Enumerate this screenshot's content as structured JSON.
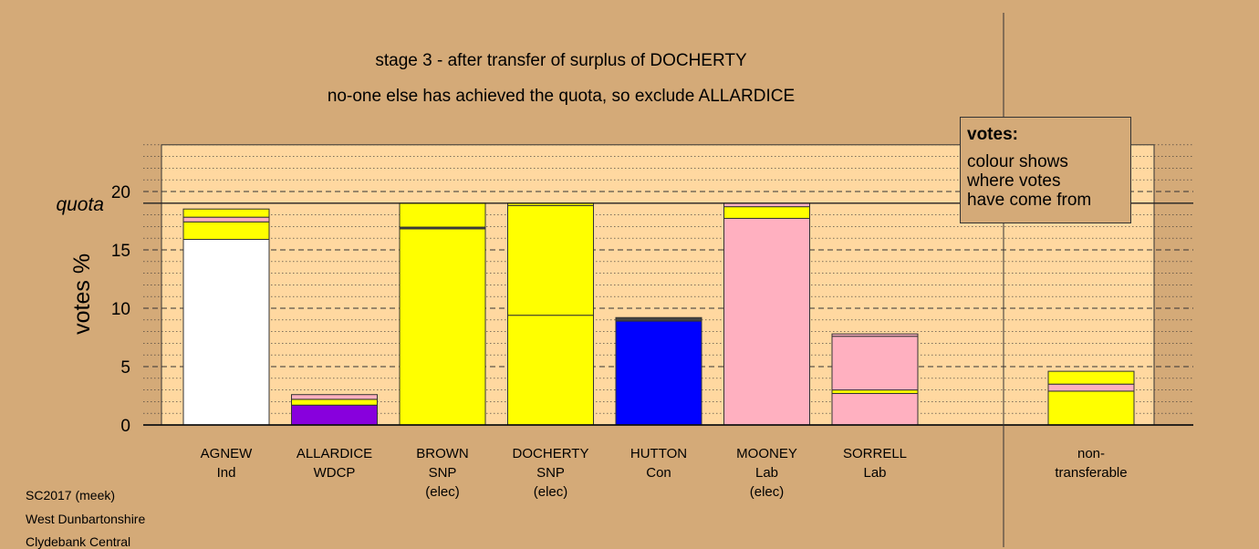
{
  "title": "stage 3 - after transfer of surplus of DOCHERTY",
  "subtitle": "no-one else has achieved the quota, so exclude ALLARDICE",
  "footer": [
    "SC2017 (meek)",
    "West Dunbartonshire",
    "Clydebank Central"
  ],
  "legend": {
    "title": "votes:",
    "lines": [
      "colour shows",
      "where votes",
      "have come from"
    ]
  },
  "colors": {
    "independent": "#ffffff",
    "wdcp": "#8800dd",
    "snp": "#ffff00",
    "conservative": "#0000ff",
    "labour": "#ffb0c0",
    "dark": "#444444",
    "background": "#d4aa78",
    "plot_bg": "#ffd8a0"
  },
  "chart_data": {
    "type": "bar",
    "stacked": true,
    "ylabel": "votes %",
    "ylim": [
      0,
      24
    ],
    "yticks": [
      0,
      5,
      10,
      15,
      20
    ],
    "quota": 19.0,
    "quota_label": "quota",
    "categories": [
      {
        "name": "AGNEW",
        "party": "Ind",
        "status": ""
      },
      {
        "name": "ALLARDICE",
        "party": "WDCP",
        "status": ""
      },
      {
        "name": "BROWN",
        "party": "SNP",
        "status": "(elec)"
      },
      {
        "name": "DOCHERTY",
        "party": "SNP",
        "status": "(elec)"
      },
      {
        "name": "HUTTON",
        "party": "Con",
        "status": ""
      },
      {
        "name": "MOONEY",
        "party": "Lab",
        "status": "(elec)"
      },
      {
        "name": "SORRELL",
        "party": "Lab",
        "status": ""
      },
      {
        "name": "",
        "party": "",
        "status": ""
      },
      {
        "name": "non-",
        "party": "transferable",
        "status": ""
      }
    ],
    "bars": [
      [
        {
          "v": 15.9,
          "c": "independent"
        },
        {
          "v": 1.5,
          "c": "snp"
        },
        {
          "v": 0.4,
          "c": "labour"
        },
        {
          "v": 0.7,
          "c": "snp"
        }
      ],
      [
        {
          "v": 1.7,
          "c": "wdcp"
        },
        {
          "v": 0.5,
          "c": "snp"
        },
        {
          "v": 0.4,
          "c": "labour"
        }
      ],
      [
        {
          "v": 16.8,
          "c": "snp"
        },
        {
          "v": 0.15,
          "c": "dark"
        },
        {
          "v": 2.05,
          "c": "snp"
        }
      ],
      [
        {
          "v": 9.4,
          "c": "snp"
        },
        {
          "v": 9.4,
          "c": "snp"
        },
        {
          "v": 0.2,
          "c": "snp"
        }
      ],
      [
        {
          "v": 8.9,
          "c": "conservative"
        },
        {
          "v": 0.3,
          "c": "dark"
        }
      ],
      [
        {
          "v": 17.7,
          "c": "labour"
        },
        {
          "v": 1.0,
          "c": "snp"
        },
        {
          "v": 0.3,
          "c": "labour"
        }
      ],
      [
        {
          "v": 2.7,
          "c": "labour"
        },
        {
          "v": 0.3,
          "c": "snp"
        },
        {
          "v": 4.6,
          "c": "labour"
        },
        {
          "v": 0.2,
          "c": "labour"
        }
      ],
      [],
      [
        {
          "v": 2.9,
          "c": "snp"
        },
        {
          "v": 0.6,
          "c": "labour"
        },
        {
          "v": 1.1,
          "c": "snp"
        }
      ]
    ]
  }
}
